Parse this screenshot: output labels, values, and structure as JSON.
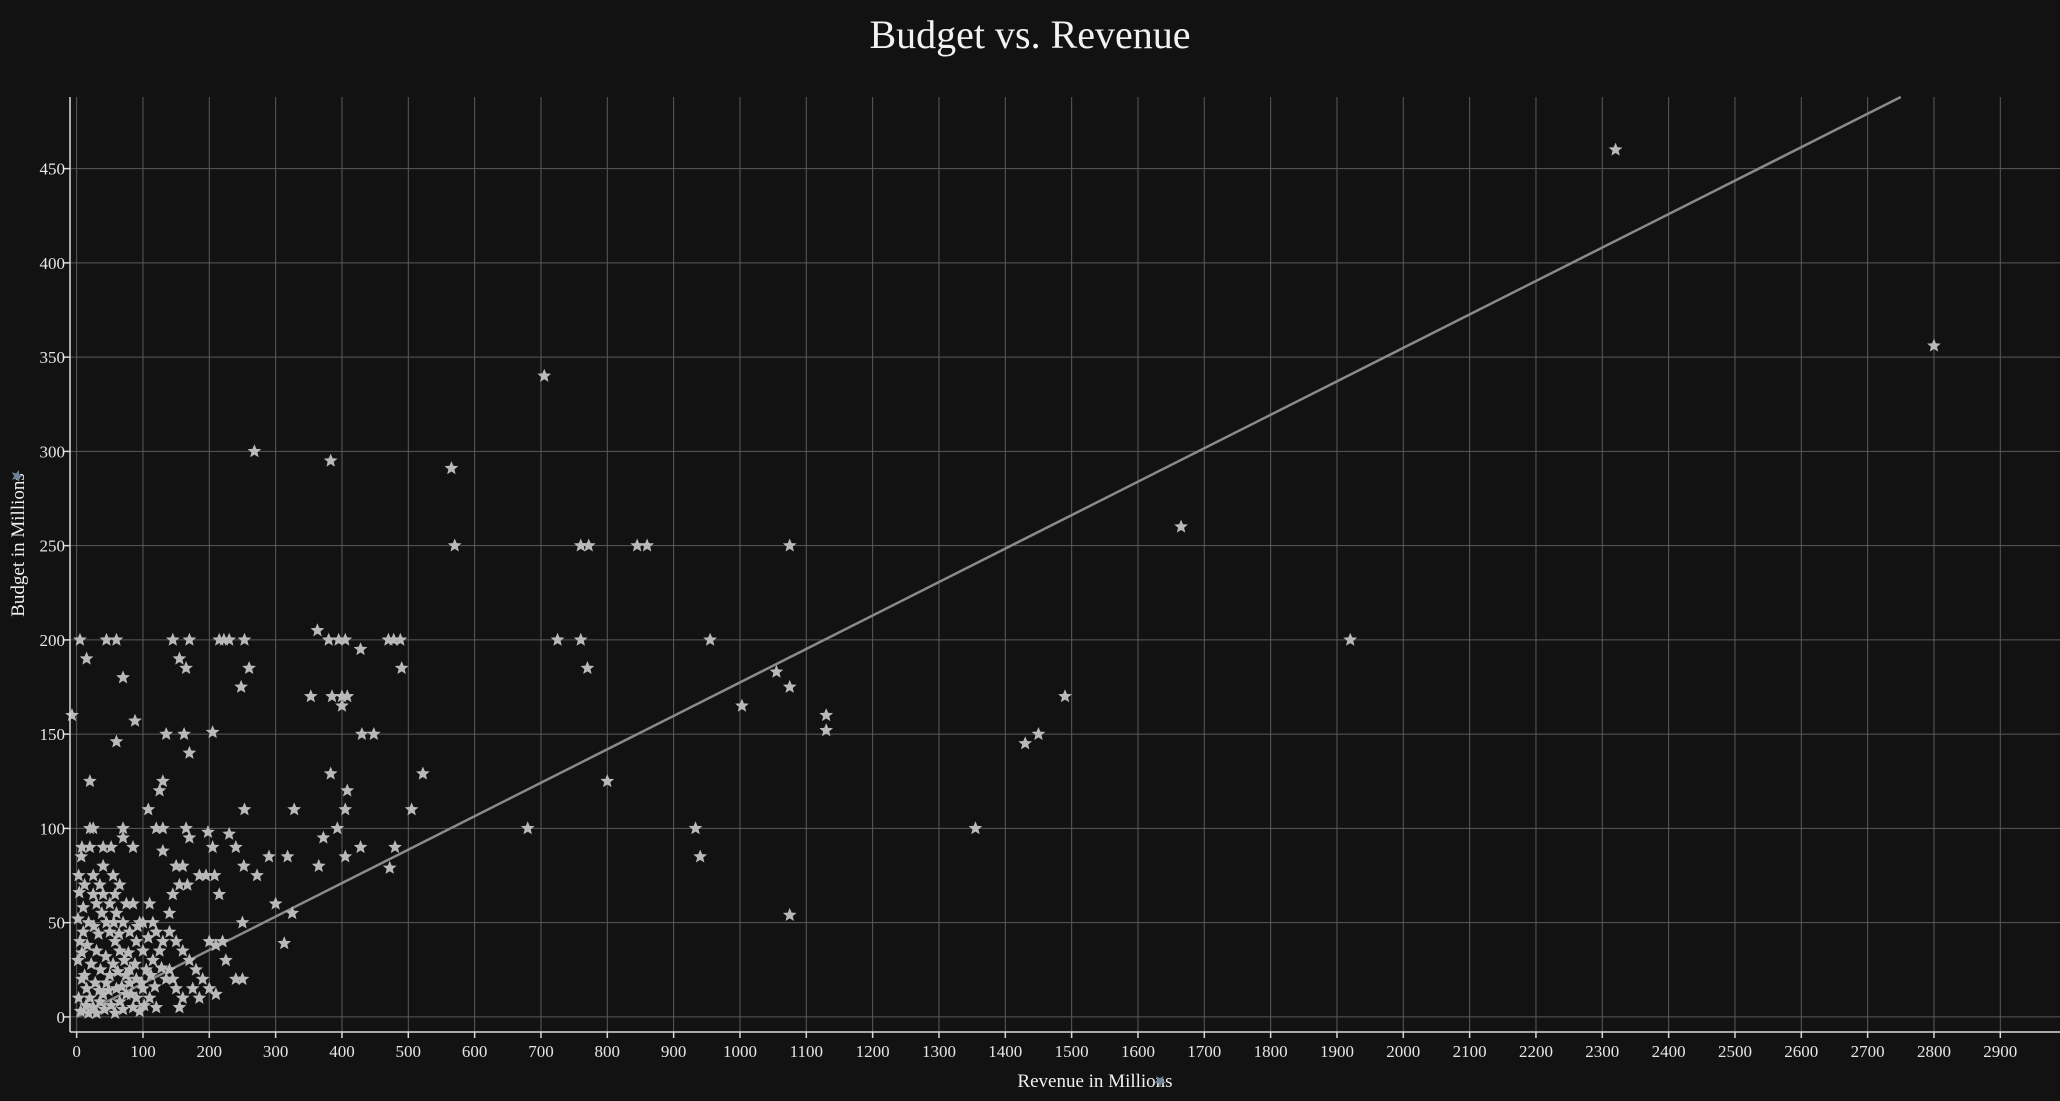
{
  "chart_data": {
    "type": "scatter",
    "title": "Budget vs. Revenue",
    "xlabel": "Revenue in Millions",
    "ylabel": "Budget in Millions",
    "xlim": [
      -10,
      2990
    ],
    "ylim": [
      -8,
      488
    ],
    "x_ticks": [
      0,
      100,
      200,
      300,
      400,
      500,
      600,
      700,
      800,
      900,
      1000,
      1100,
      1200,
      1300,
      1400,
      1500,
      1600,
      1700,
      1800,
      1900,
      2000,
      2100,
      2200,
      2300,
      2400,
      2500,
      2600,
      2700,
      2800,
      2900
    ],
    "y_ticks": [
      0,
      50,
      100,
      150,
      200,
      250,
      300,
      350,
      400,
      450
    ],
    "grid": true,
    "legend": "none",
    "marker": "star-icon",
    "trendline": {
      "x": [
        0,
        2750
      ],
      "y": [
        0,
        488
      ]
    },
    "points": [
      {
        "x": 2320,
        "y": 460
      },
      {
        "x": 2800,
        "y": 356
      },
      {
        "x": 1665,
        "y": 260
      },
      {
        "x": 1920,
        "y": 200
      },
      {
        "x": 1490,
        "y": 170
      },
      {
        "x": 1450,
        "y": 150
      },
      {
        "x": 1430,
        "y": 145
      },
      {
        "x": 1355,
        "y": 100
      },
      {
        "x": 1130,
        "y": 160
      },
      {
        "x": 1130,
        "y": 152
      },
      {
        "x": 1075,
        "y": 250
      },
      {
        "x": 1075,
        "y": 175
      },
      {
        "x": 1075,
        "y": 54
      },
      {
        "x": 1055,
        "y": 183
      },
      {
        "x": 1003,
        "y": 165
      },
      {
        "x": 955,
        "y": 200
      },
      {
        "x": 933,
        "y": 100
      },
      {
        "x": 940,
        "y": 85
      },
      {
        "x": 705,
        "y": 340
      },
      {
        "x": 680,
        "y": 100
      },
      {
        "x": 725,
        "y": 200
      },
      {
        "x": 760,
        "y": 250
      },
      {
        "x": 772,
        "y": 250
      },
      {
        "x": 760,
        "y": 200
      },
      {
        "x": 770,
        "y": 185
      },
      {
        "x": 845,
        "y": 250
      },
      {
        "x": 860,
        "y": 250
      },
      {
        "x": 800,
        "y": 125
      },
      {
        "x": 565,
        "y": 291
      },
      {
        "x": 570,
        "y": 250
      },
      {
        "x": 268,
        "y": 300
      },
      {
        "x": 383,
        "y": 295
      },
      {
        "x": 505,
        "y": 110
      },
      {
        "x": 522,
        "y": 129
      },
      {
        "x": 363,
        "y": 205
      },
      {
        "x": 380,
        "y": 200
      },
      {
        "x": 395,
        "y": 200
      },
      {
        "x": 405,
        "y": 200
      },
      {
        "x": 400,
        "y": 170
      },
      {
        "x": 408,
        "y": 170
      },
      {
        "x": 400,
        "y": 165
      },
      {
        "x": 428,
        "y": 195
      },
      {
        "x": 470,
        "y": 200
      },
      {
        "x": 478,
        "y": 200
      },
      {
        "x": 488,
        "y": 200
      },
      {
        "x": 490,
        "y": 185
      },
      {
        "x": 385,
        "y": 170
      },
      {
        "x": 353,
        "y": 170
      },
      {
        "x": 430,
        "y": 150
      },
      {
        "x": 448,
        "y": 150
      },
      {
        "x": 383,
        "y": 129
      },
      {
        "x": 408,
        "y": 120
      },
      {
        "x": 405,
        "y": 110
      },
      {
        "x": 393,
        "y": 100
      },
      {
        "x": 372,
        "y": 95
      },
      {
        "x": 405,
        "y": 85
      },
      {
        "x": 428,
        "y": 90
      },
      {
        "x": 480,
        "y": 90
      },
      {
        "x": 472,
        "y": 79
      },
      {
        "x": 365,
        "y": 80
      },
      {
        "x": 328,
        "y": 110
      },
      {
        "x": 318,
        "y": 85
      },
      {
        "x": 300,
        "y": 60
      },
      {
        "x": 325,
        "y": 55
      },
      {
        "x": 313,
        "y": 39
      },
      {
        "x": 290,
        "y": 85
      },
      {
        "x": 272,
        "y": 75
      },
      {
        "x": 253,
        "y": 110
      },
      {
        "x": 252,
        "y": 80
      },
      {
        "x": 240,
        "y": 90
      },
      {
        "x": 230,
        "y": 97
      },
      {
        "x": 205,
        "y": 90
      },
      {
        "x": 198,
        "y": 98
      },
      {
        "x": 215,
        "y": 65
      },
      {
        "x": 195,
        "y": 75
      },
      {
        "x": 208,
        "y": 75
      },
      {
        "x": 185,
        "y": 75
      },
      {
        "x": 165,
        "y": 100
      },
      {
        "x": 167,
        "y": 70
      },
      {
        "x": 160,
        "y": 80
      },
      {
        "x": 150,
        "y": 80
      },
      {
        "x": 155,
        "y": 70
      },
      {
        "x": 145,
        "y": 65
      },
      {
        "x": 222,
        "y": 200
      },
      {
        "x": 230,
        "y": 200
      },
      {
        "x": 215,
        "y": 200
      },
      {
        "x": 253,
        "y": 200
      },
      {
        "x": 248,
        "y": 175
      },
      {
        "x": 260,
        "y": 185
      },
      {
        "x": 205,
        "y": 151
      },
      {
        "x": 170,
        "y": 140
      },
      {
        "x": 165,
        "y": 185
      },
      {
        "x": 155,
        "y": 190
      },
      {
        "x": 145,
        "y": 200
      },
      {
        "x": 170,
        "y": 200
      },
      {
        "x": 162,
        "y": 150
      },
      {
        "x": 135,
        "y": 150
      },
      {
        "x": 130,
        "y": 125
      },
      {
        "x": 125,
        "y": 120
      },
      {
        "x": 120,
        "y": 100
      },
      {
        "x": 130,
        "y": 100
      },
      {
        "x": 130,
        "y": 88
      },
      {
        "x": 108,
        "y": 110
      },
      {
        "x": 88,
        "y": 157
      },
      {
        "x": 60,
        "y": 146
      },
      {
        "x": 70,
        "y": 180
      },
      {
        "x": 60,
        "y": 200
      },
      {
        "x": 45,
        "y": 200
      },
      {
        "x": 15,
        "y": 190
      },
      {
        "x": 5,
        "y": 200
      },
      {
        "x": -7,
        "y": 160
      },
      {
        "x": 20,
        "y": 125
      },
      {
        "x": 20,
        "y": 100
      },
      {
        "x": 25,
        "y": 100
      },
      {
        "x": 70,
        "y": 100
      },
      {
        "x": 70,
        "y": 95
      },
      {
        "x": 85,
        "y": 90
      },
      {
        "x": 40,
        "y": 90
      },
      {
        "x": 52,
        "y": 90
      },
      {
        "x": 20,
        "y": 90
      },
      {
        "x": 8,
        "y": 90
      },
      {
        "x": 12,
        "y": 70
      },
      {
        "x": 25,
        "y": 75
      },
      {
        "x": 40,
        "y": 80
      },
      {
        "x": 55,
        "y": 75
      },
      {
        "x": 65,
        "y": 70
      },
      {
        "x": 75,
        "y": 60
      },
      {
        "x": 85,
        "y": 60
      },
      {
        "x": 95,
        "y": 50
      },
      {
        "x": 100,
        "y": 50
      },
      {
        "x": 110,
        "y": 60
      },
      {
        "x": 115,
        "y": 50
      },
      {
        "x": 120,
        "y": 45
      },
      {
        "x": 130,
        "y": 40
      },
      {
        "x": 140,
        "y": 45
      },
      {
        "x": 150,
        "y": 40
      },
      {
        "x": 160,
        "y": 35
      },
      {
        "x": 170,
        "y": 30
      },
      {
        "x": 180,
        "y": 25
      },
      {
        "x": 190,
        "y": 20
      },
      {
        "x": 200,
        "y": 40
      },
      {
        "x": 210,
        "y": 38
      },
      {
        "x": 220,
        "y": 40
      },
      {
        "x": 225,
        "y": 30
      },
      {
        "x": 240,
        "y": 20
      },
      {
        "x": 250,
        "y": 20
      },
      {
        "x": 250,
        "y": 50
      },
      {
        "x": 140,
        "y": 25
      },
      {
        "x": 145,
        "y": 20
      },
      {
        "x": 150,
        "y": 15
      },
      {
        "x": 155,
        "y": 5
      },
      {
        "x": 160,
        "y": 10
      },
      {
        "x": 175,
        "y": 15
      },
      {
        "x": 185,
        "y": 10
      },
      {
        "x": 200,
        "y": 15
      },
      {
        "x": 210,
        "y": 12
      },
      {
        "x": 120,
        "y": 5
      },
      {
        "x": 110,
        "y": 10
      },
      {
        "x": 100,
        "y": 15
      },
      {
        "x": 90,
        "y": 20
      },
      {
        "x": 80,
        "y": 25
      },
      {
        "x": 72,
        "y": 30
      },
      {
        "x": 65,
        "y": 35
      },
      {
        "x": 58,
        "y": 40
      },
      {
        "x": 50,
        "y": 45
      },
      {
        "x": 45,
        "y": 50
      },
      {
        "x": 38,
        "y": 55
      },
      {
        "x": 30,
        "y": 60
      },
      {
        "x": 25,
        "y": 65
      },
      {
        "x": 18,
        "y": 50
      },
      {
        "x": 10,
        "y": 45
      },
      {
        "x": 5,
        "y": 40
      },
      {
        "x": 2,
        "y": 30
      },
      {
        "x": 8,
        "y": 20
      },
      {
        "x": 15,
        "y": 15
      },
      {
        "x": 20,
        "y": 10
      },
      {
        "x": 25,
        "y": 5
      },
      {
        "x": 30,
        "y": 2
      },
      {
        "x": 35,
        "y": 8
      },
      {
        "x": 40,
        "y": 12
      },
      {
        "x": 45,
        "y": 18
      },
      {
        "x": 50,
        "y": 22
      },
      {
        "x": 55,
        "y": 28
      },
      {
        "x": 60,
        "y": 15
      },
      {
        "x": 65,
        "y": 8
      },
      {
        "x": 70,
        "y": 4
      },
      {
        "x": 75,
        "y": 12
      },
      {
        "x": 80,
        "y": 18
      },
      {
        "x": 85,
        "y": 5
      },
      {
        "x": 90,
        "y": 10
      },
      {
        "x": 95,
        "y": 3
      },
      {
        "x": 105,
        "y": 25
      },
      {
        "x": 115,
        "y": 30
      },
      {
        "x": 125,
        "y": 35
      },
      {
        "x": 135,
        "y": 20
      },
      {
        "x": 140,
        "y": 55
      },
      {
        "x": 100,
        "y": 35
      },
      {
        "x": 90,
        "y": 40
      },
      {
        "x": 80,
        "y": 45
      },
      {
        "x": 70,
        "y": 50
      },
      {
        "x": 60,
        "y": 55
      },
      {
        "x": 50,
        "y": 60
      },
      {
        "x": 40,
        "y": 65
      },
      {
        "x": 30,
        "y": 35
      },
      {
        "x": 22,
        "y": 28
      },
      {
        "x": 12,
        "y": 22
      },
      {
        "x": 3,
        "y": 10
      },
      {
        "x": 6,
        "y": 3
      },
      {
        "x": 14,
        "y": 6
      },
      {
        "x": 28,
        "y": 18
      },
      {
        "x": 36,
        "y": 25
      },
      {
        "x": 44,
        "y": 32
      },
      {
        "x": 52,
        "y": 6
      },
      {
        "x": 58,
        "y": 2
      },
      {
        "x": 62,
        "y": 24
      },
      {
        "x": 10,
        "y": 58
      },
      {
        "x": 4,
        "y": 66
      },
      {
        "x": 16,
        "y": 38
      },
      {
        "x": 33,
        "y": 44
      },
      {
        "x": 48,
        "y": 14
      },
      {
        "x": 68,
        "y": 16
      },
      {
        "x": 78,
        "y": 34
      },
      {
        "x": 88,
        "y": 28
      },
      {
        "x": 98,
        "y": 18
      },
      {
        "x": 108,
        "y": 42
      },
      {
        "x": 118,
        "y": 16
      },
      {
        "x": 128,
        "y": 26
      },
      {
        "x": 2,
        "y": 52
      },
      {
        "x": 8,
        "y": 34
      },
      {
        "x": 18,
        "y": 2
      },
      {
        "x": 26,
        "y": 48
      },
      {
        "x": 34,
        "y": 14
      },
      {
        "x": 42,
        "y": 4
      },
      {
        "x": 56,
        "y": 50
      },
      {
        "x": 64,
        "y": 44
      },
      {
        "x": 74,
        "y": 22
      },
      {
        "x": 82,
        "y": 12
      },
      {
        "x": 92,
        "y": 48
      },
      {
        "x": 102,
        "y": 6
      },
      {
        "x": 112,
        "y": 22
      },
      {
        "x": 3,
        "y": 75
      },
      {
        "x": 7,
        "y": 85
      },
      {
        "x": 35,
        "y": 70
      },
      {
        "x": 58,
        "y": 65
      },
      {
        "x": 170,
        "y": 95
      }
    ]
  }
}
